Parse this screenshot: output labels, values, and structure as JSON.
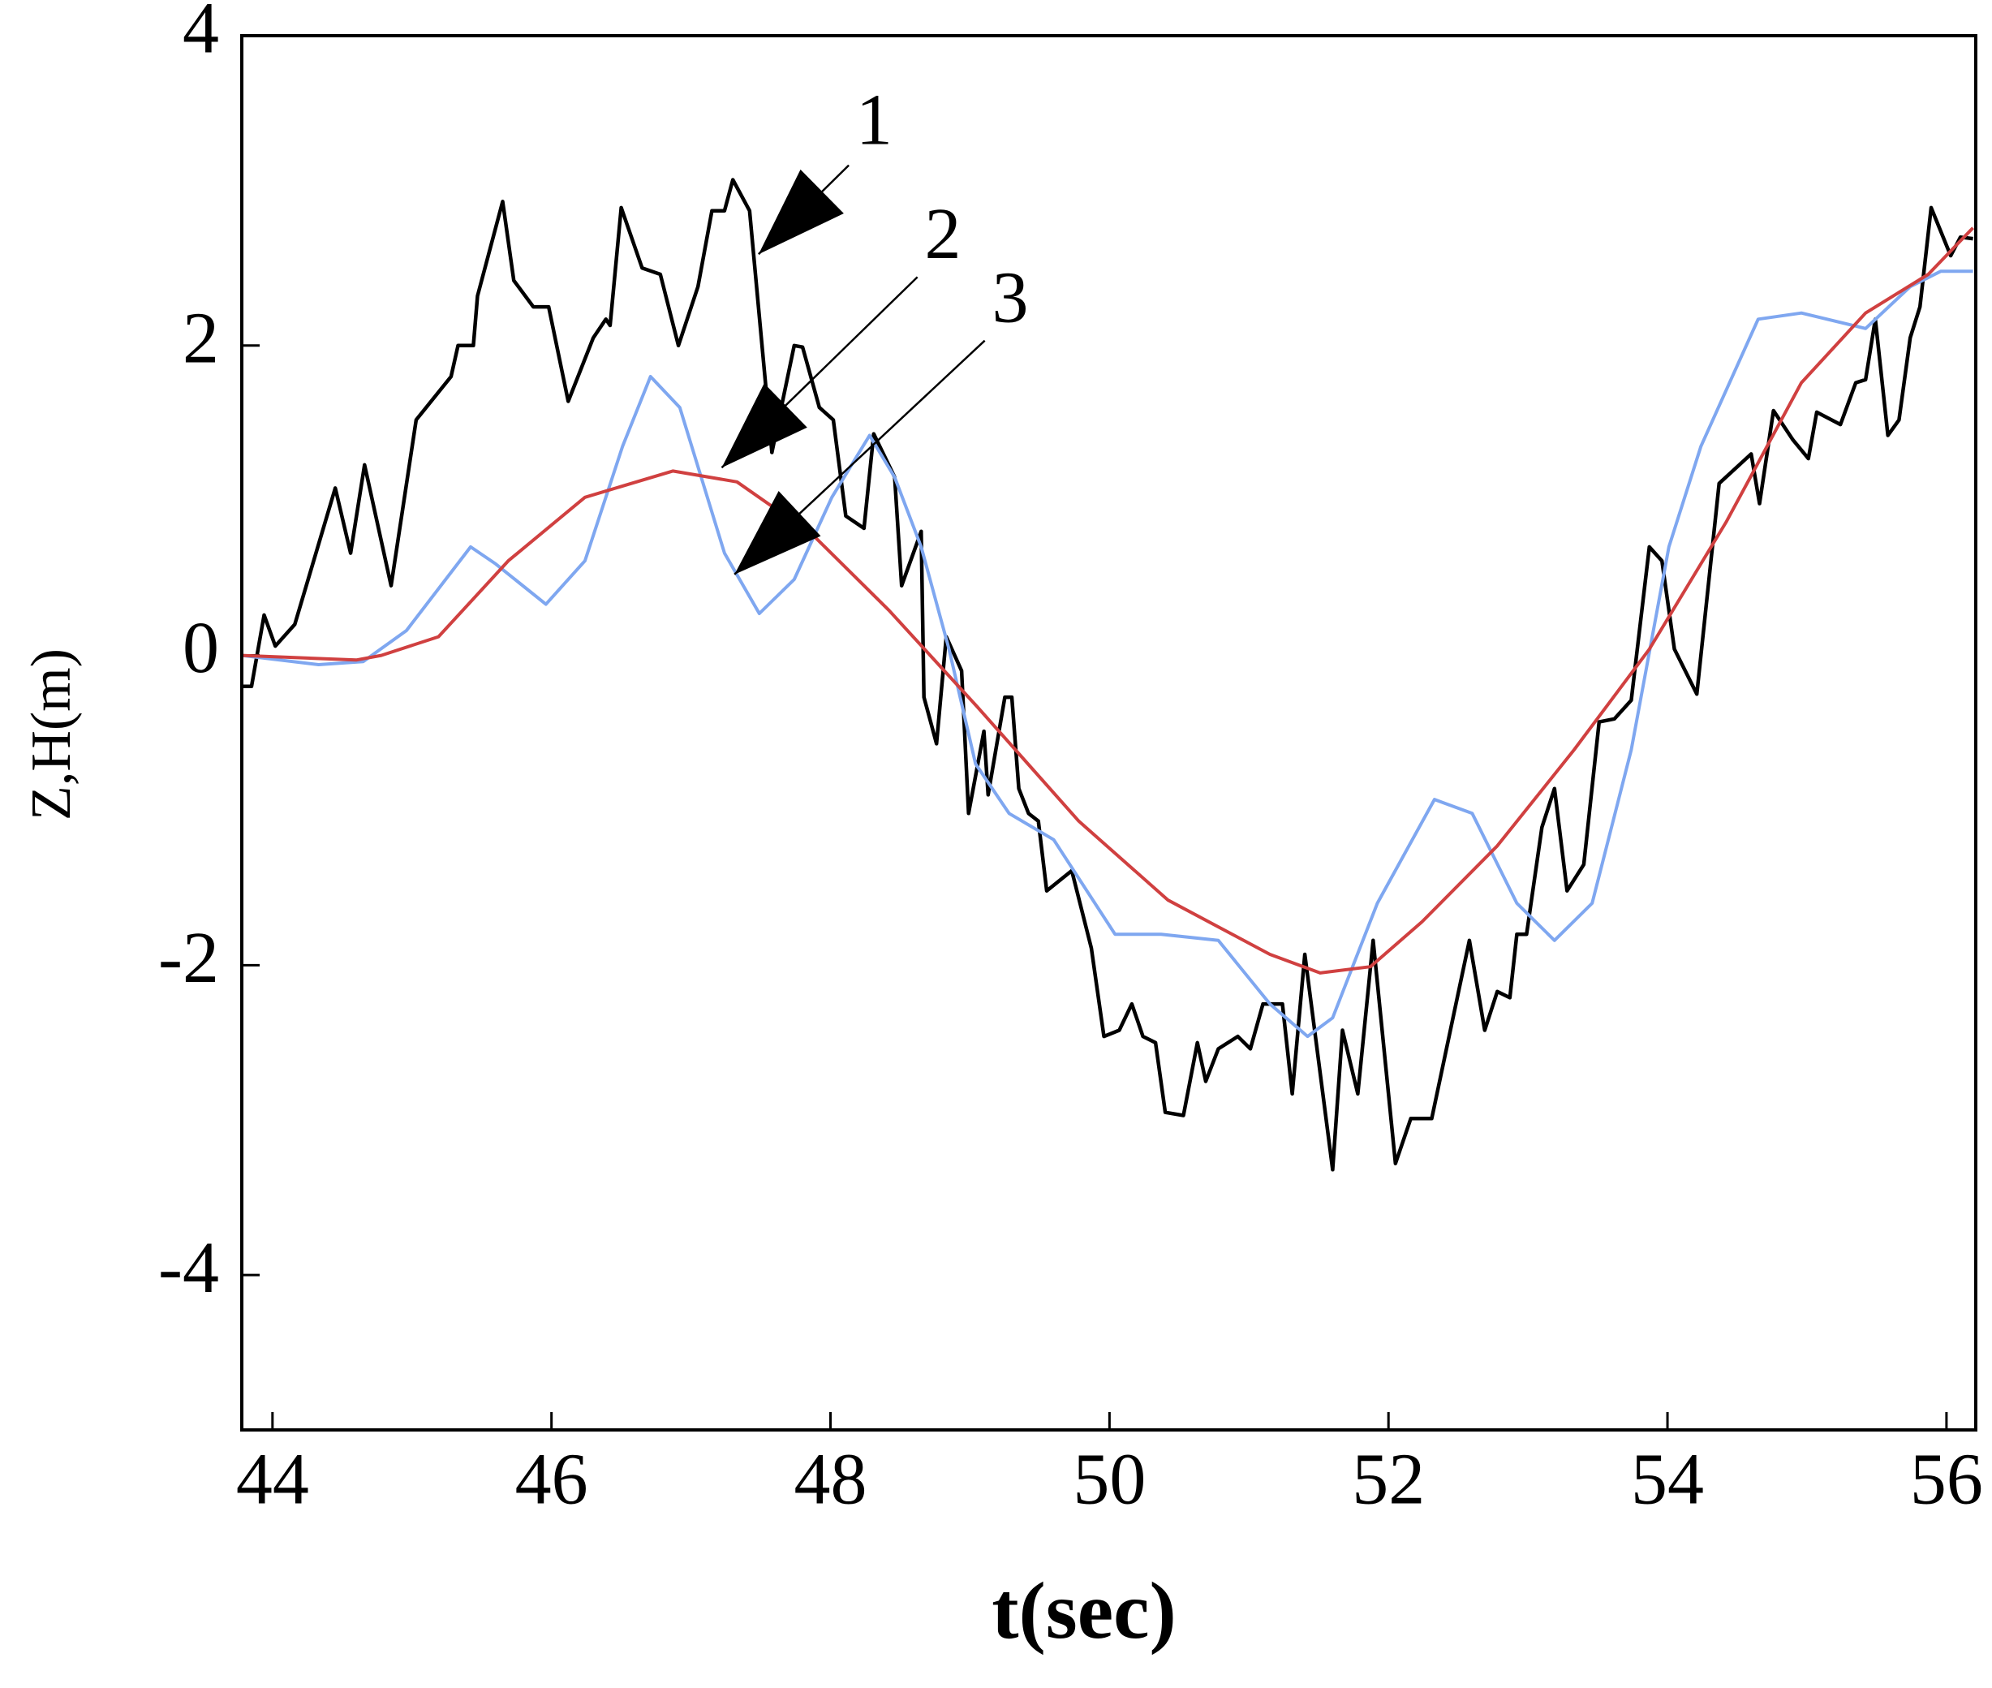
{
  "chart_data": {
    "type": "line",
    "xlabel": "t(sec)",
    "ylabel": "Z,H(m)",
    "annotations": [
      "1",
      "2",
      "3"
    ],
    "xlim": [
      43.78,
      56.21
    ],
    "ylim": [
      -5,
      4
    ],
    "xticks": [
      44,
      46,
      48,
      50,
      52,
      54,
      56
    ],
    "yticks": [
      -4,
      -2,
      0,
      2,
      4
    ],
    "series": [
      {
        "color": "#000000",
        "x": [
          43.78,
          43.85,
          43.94,
          44.02,
          44.16,
          44.45,
          44.56,
          44.66,
          44.85,
          45.03,
          45.28,
          45.33,
          45.44,
          45.47,
          45.65,
          45.73,
          45.87,
          45.98,
          46.12,
          46.3,
          46.39,
          46.42,
          46.5,
          46.65,
          46.78,
          46.91,
          47.05,
          47.15,
          47.24,
          47.3,
          47.42,
          47.58,
          47.74,
          47.8,
          47.92,
          48.02,
          48.11,
          48.24,
          48.31,
          48.46,
          48.51,
          48.65,
          48.67,
          48.76,
          48.83,
          48.94,
          48.99,
          49.1,
          49.13,
          49.25,
          49.3,
          49.35,
          49.42,
          49.49,
          49.55,
          49.73,
          49.87,
          49.96,
          50.07,
          50.16,
          50.24,
          50.33,
          50.4,
          50.53,
          50.63,
          50.69,
          50.78,
          50.92,
          51.01,
          51.1,
          51.24,
          51.31,
          51.4,
          51.6,
          51.67,
          51.78,
          51.89,
          52.05,
          52.16,
          52.31,
          52.58,
          52.69,
          52.78,
          52.87,
          52.92,
          52.99,
          53.1,
          53.19,
          53.28,
          53.4,
          53.51,
          53.62,
          53.74,
          53.87,
          53.96,
          54.05,
          54.21,
          54.37,
          54.6,
          54.66,
          54.76,
          54.9,
          55.01,
          55.07,
          55.24,
          55.35,
          55.42,
          55.49,
          55.58,
          55.66,
          55.74,
          55.81,
          55.89,
          56.03,
          56.1,
          56.19
        ],
        "values": [
          -0.2,
          -0.2,
          0.26,
          0.06,
          0.2,
          1.08,
          0.66,
          1.23,
          0.45,
          1.52,
          1.8,
          2.0,
          2.0,
          2.32,
          2.93,
          2.42,
          2.25,
          2.25,
          1.64,
          2.05,
          2.17,
          2.13,
          2.89,
          2.5,
          2.46,
          2.0,
          2.38,
          2.87,
          2.87,
          3.07,
          2.87,
          1.31,
          2.0,
          1.99,
          1.6,
          1.52,
          0.9,
          0.82,
          1.43,
          1.15,
          0.45,
          0.8,
          -0.27,
          -0.57,
          0.12,
          -0.1,
          -1.02,
          -0.49,
          -0.9,
          -0.27,
          -0.27,
          -0.86,
          -1.02,
          -1.07,
          -1.52,
          -1.39,
          -1.89,
          -2.46,
          -2.42,
          -2.25,
          -2.46,
          -2.5,
          -2.95,
          -2.97,
          -2.5,
          -2.75,
          -2.54,
          -2.46,
          -2.54,
          -2.25,
          -2.25,
          -2.83,
          -1.93,
          -3.32,
          -2.42,
          -2.83,
          -1.84,
          -3.28,
          -2.99,
          -2.99,
          -1.84,
          -2.42,
          -2.17,
          -2.21,
          -1.8,
          -1.8,
          -1.11,
          -0.86,
          -1.52,
          -1.35,
          -0.43,
          -0.41,
          -0.29,
          0.7,
          0.61,
          0.04,
          -0.25,
          1.11,
          1.3,
          0.98,
          1.58,
          1.39,
          1.27,
          1.57,
          1.49,
          1.76,
          1.78,
          2.17,
          1.42,
          1.52,
          2.05,
          2.25,
          2.89,
          2.58,
          2.7,
          2.69
        ]
      },
      {
        "color": "#7fa7f0",
        "x": [
          43.78,
          44.33,
          44.65,
          44.96,
          45.42,
          45.6,
          45.96,
          46.24,
          46.51,
          46.71,
          46.92,
          47.24,
          47.49,
          47.74,
          48.01,
          48.28,
          48.46,
          48.65,
          48.85,
          49.04,
          49.28,
          49.6,
          50.04,
          50.37,
          50.78,
          51.15,
          51.42,
          51.6,
          51.92,
          52.33,
          52.6,
          52.92,
          53.19,
          53.46,
          53.74,
          54.01,
          54.24,
          54.65,
          54.96,
          55.42,
          55.74,
          55.96,
          56.19
        ],
        "values": [
          0,
          -0.06,
          -0.04,
          0.16,
          0.7,
          0.59,
          0.33,
          0.61,
          1.35,
          1.8,
          1.6,
          0.66,
          0.27,
          0.49,
          1.02,
          1.42,
          1.15,
          0.7,
          0.04,
          -0.7,
          -1.02,
          -1.19,
          -1.8,
          -1.8,
          -1.84,
          -2.25,
          -2.46,
          -2.34,
          -1.6,
          -0.93,
          -1.02,
          -1.6,
          -1.84,
          -1.6,
          -0.61,
          0.7,
          1.35,
          2.17,
          2.21,
          2.11,
          2.38,
          2.48,
          2.48
        ]
      },
      {
        "color": "#d04040",
        "x": [
          43.78,
          44.6,
          44.78,
          45.19,
          45.69,
          46.24,
          46.87,
          47.33,
          47.87,
          48.42,
          49.05,
          49.78,
          50.42,
          51.15,
          51.51,
          51.87,
          52.24,
          52.78,
          53.33,
          53.87,
          54.42,
          54.96,
          55.42,
          55.87,
          56.19
        ],
        "values": [
          0,
          -0.03,
          0,
          0.12,
          0.61,
          1.02,
          1.19,
          1.12,
          0.78,
          0.29,
          -0.33,
          -1.07,
          -1.58,
          -1.93,
          -2.05,
          -2.01,
          -1.72,
          -1.23,
          -0.61,
          0.04,
          0.86,
          1.76,
          2.21,
          2.46,
          2.76
        ]
      }
    ]
  }
}
